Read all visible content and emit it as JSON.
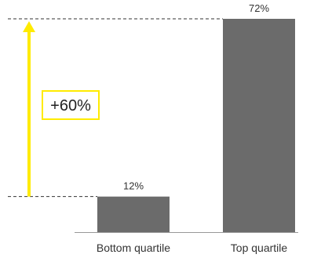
{
  "chart_data": {
    "type": "bar",
    "categories": [
      "Bottom quartile",
      "Top quartile"
    ],
    "values": [
      12,
      72
    ],
    "data_labels": [
      "12%",
      "72%"
    ],
    "ylim": [
      0,
      72
    ],
    "grid": false,
    "annotation": {
      "text": "+60%",
      "from_value": 12,
      "to_value": 72
    },
    "colors": {
      "bar": "#6b6b6b",
      "arrow": "#ffeb00",
      "callout_border": "#ffeb00",
      "guide_line": "#333333",
      "axis": "#999999"
    }
  }
}
